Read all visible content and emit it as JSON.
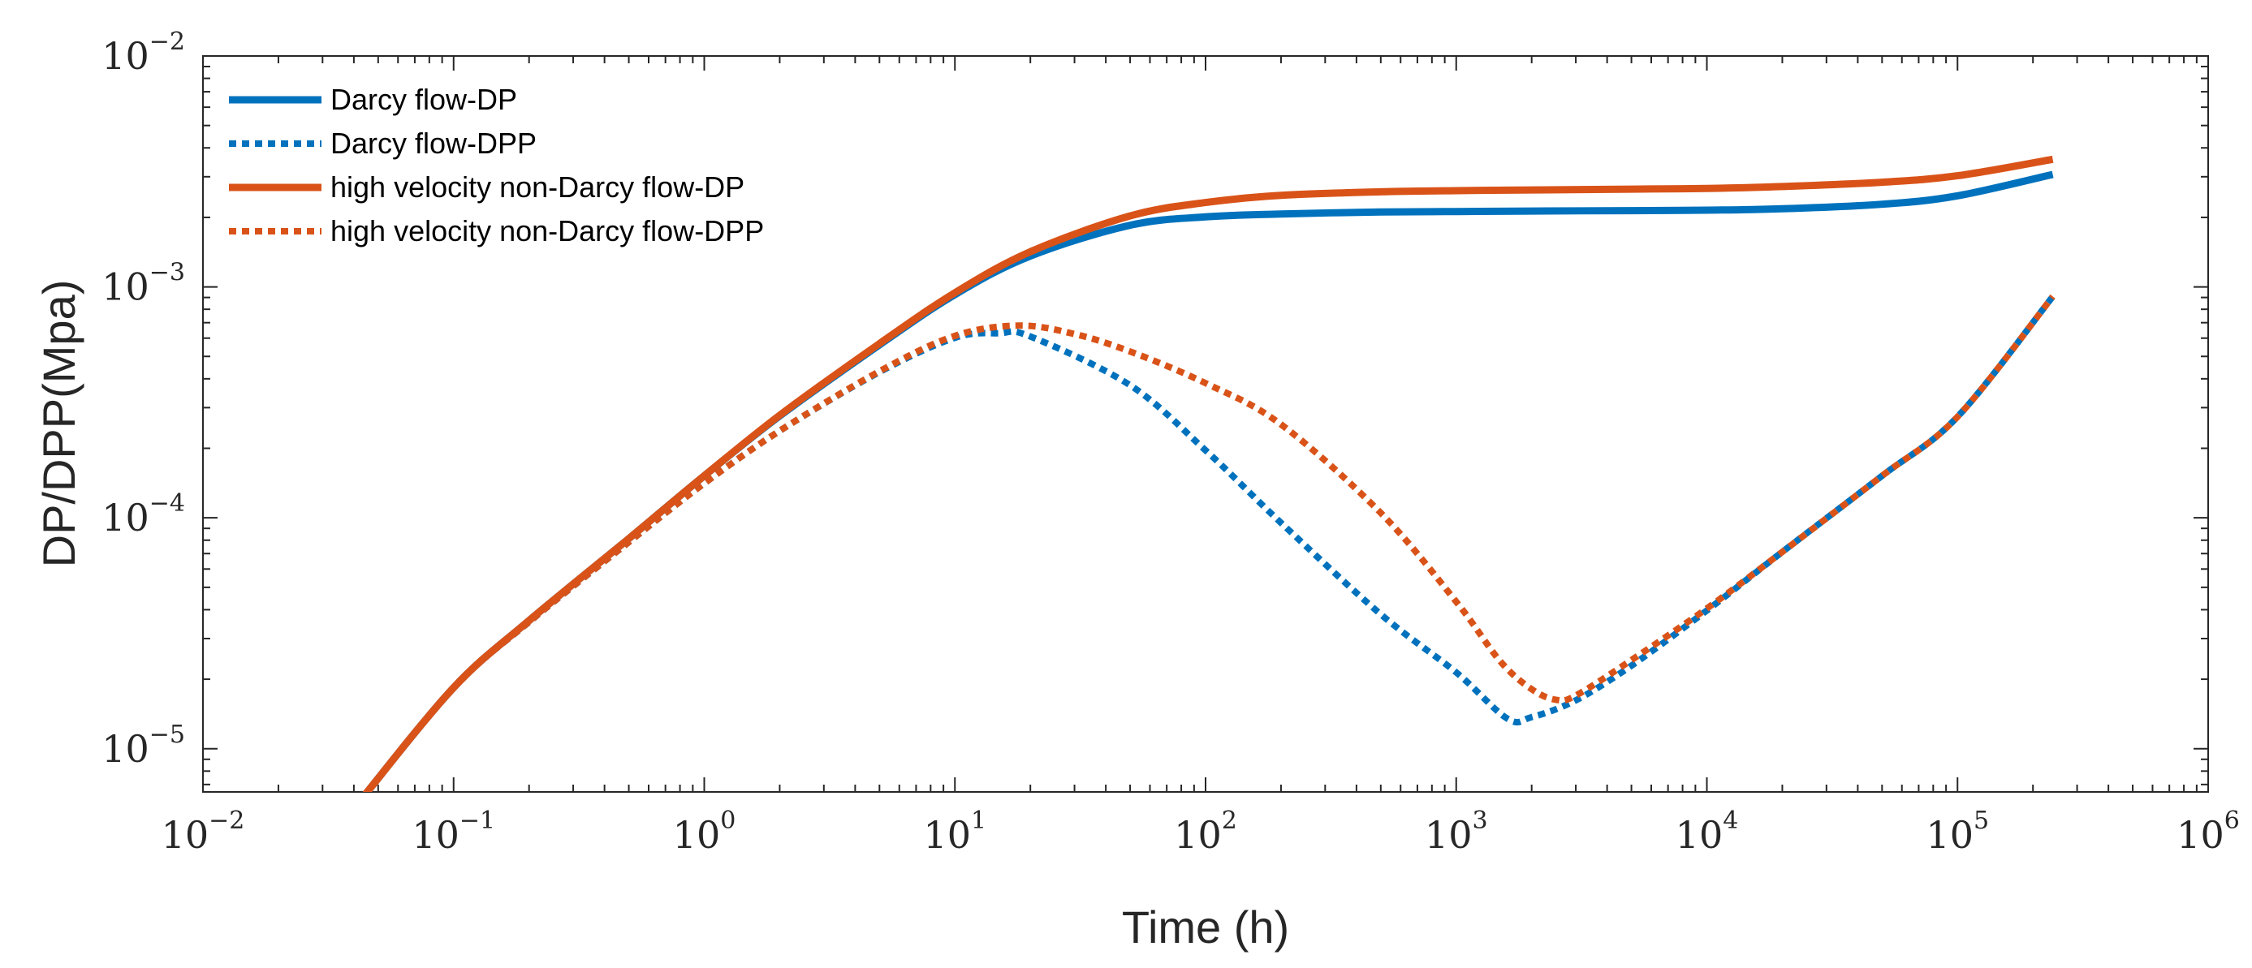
{
  "chart_data": {
    "type": "line",
    "title": "",
    "xlabel": "Time (h)",
    "ylabel": "DP/DPP(Mpa)",
    "xscale": "log",
    "yscale": "log",
    "xlim": [
      0.01,
      1000000
    ],
    "ylim": [
      6.5e-06,
      0.01
    ],
    "grid": false,
    "legend_position": "top-left",
    "x_ticks": [
      {
        "base": "10",
        "exp": "−2"
      },
      {
        "base": "10",
        "exp": "−1"
      },
      {
        "base": "10",
        "exp": "0"
      },
      {
        "base": "10",
        "exp": "1"
      },
      {
        "base": "10",
        "exp": "2"
      },
      {
        "base": "10",
        "exp": "3"
      },
      {
        "base": "10",
        "exp": "4"
      },
      {
        "base": "10",
        "exp": "5"
      },
      {
        "base": "10",
        "exp": "6"
      }
    ],
    "y_ticks": [
      {
        "base": "10",
        "exp": "−5"
      },
      {
        "base": "10",
        "exp": "−4"
      },
      {
        "base": "10",
        "exp": "−3"
      },
      {
        "base": "10",
        "exp": "−2"
      }
    ],
    "series": [
      {
        "name": "Darcy flow-DP",
        "color": "#0072BD",
        "style": "solid",
        "x": [
          0.0437,
          0.1,
          0.2,
          0.5,
          1,
          2,
          5,
          10,
          20,
          50,
          100,
          200,
          500,
          1000,
          2000,
          5000,
          10000,
          20000,
          50000,
          100000,
          240000
        ],
        "y": [
          6.2e-06,
          1.84e-05,
          3.59e-05,
          8.13e-05,
          0.000152,
          0.000276,
          0.000561,
          0.000926,
          0.00136,
          0.00185,
          0.00201,
          0.00207,
          0.00211,
          0.00212,
          0.00213,
          0.00214,
          0.00215,
          0.00218,
          0.00228,
          0.00248,
          0.00307
        ]
      },
      {
        "name": "Darcy flow-DPP",
        "color": "#0072BD",
        "style": "dotted",
        "x": [
          0.0437,
          0.1,
          0.2,
          0.5,
          1,
          2,
          5,
          10,
          15,
          20,
          50,
          100,
          200,
          500,
          1000,
          1600,
          2000,
          3000,
          5000,
          10000,
          20000,
          50000,
          100000,
          240000
        ],
        "y": [
          6.2e-06,
          1.84e-05,
          3.54e-05,
          7.85e-05,
          0.000141,
          0.000238,
          0.000428,
          0.000602,
          0.00063,
          0.00061,
          0.000375,
          0.000196,
          9.52e-05,
          3.82e-05,
          2.14e-05,
          1.35e-05,
          1.37e-05,
          1.62e-05,
          2.29e-05,
          3.97e-05,
          7.12e-05,
          0.000152,
          0.000274,
          0.000909
        ]
      },
      {
        "name": "high velocity non-Darcy flow-DP",
        "color": "#D95319",
        "style": "solid",
        "x": [
          0.0437,
          0.1,
          0.2,
          0.5,
          1,
          2,
          5,
          10,
          20,
          50,
          100,
          200,
          500,
          1000,
          2000,
          5000,
          10000,
          20000,
          50000,
          100000,
          240000
        ],
        "y": [
          6.2e-06,
          1.84e-05,
          3.59e-05,
          8.13e-05,
          0.000152,
          0.000278,
          0.000568,
          0.000943,
          0.00142,
          0.00203,
          0.00232,
          0.00249,
          0.00258,
          0.00261,
          0.00263,
          0.00265,
          0.00267,
          0.00272,
          0.00284,
          0.00303,
          0.00357
        ]
      },
      {
        "name": "high velocity non-Darcy flow-DPP",
        "color": "#D95319",
        "style": "dotted",
        "x": [
          0.0437,
          0.1,
          0.2,
          0.5,
          1,
          2,
          5,
          10,
          18,
          30,
          50,
          100,
          200,
          500,
          1000,
          1500,
          2000,
          2500,
          3000,
          5000,
          10000,
          20000,
          50000,
          100000,
          240000
        ],
        "y": [
          6.2e-06,
          1.84e-05,
          3.54e-05,
          7.85e-05,
          0.000141,
          0.000238,
          0.000431,
          0.000614,
          0.00068,
          0.000625,
          0.000525,
          0.000383,
          0.000254,
          0.000105,
          4.33e-05,
          2.39e-05,
          1.81e-05,
          1.63e-05,
          1.7e-05,
          2.42e-05,
          4.05e-05,
          7.12e-05,
          0.000152,
          0.000274,
          0.000909
        ]
      }
    ]
  }
}
